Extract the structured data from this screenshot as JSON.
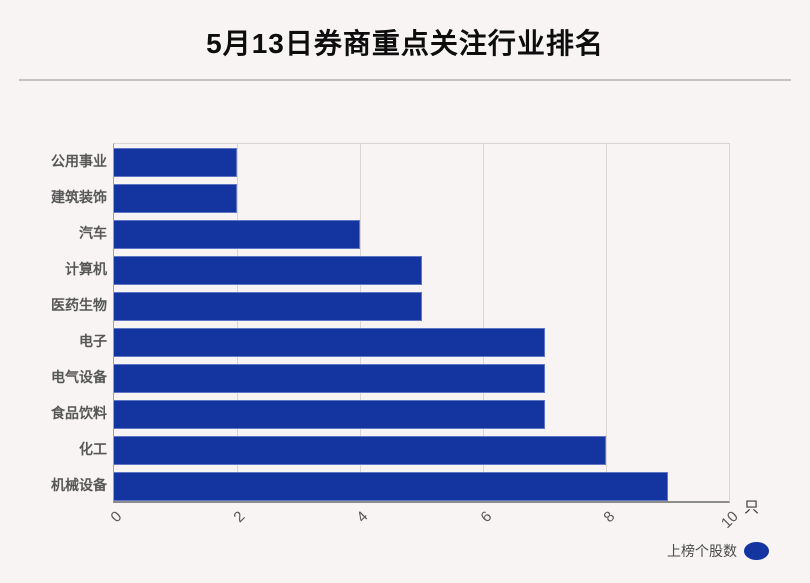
{
  "title": "5月13日券商重点关注行业排名",
  "axis": {
    "unit_label": "只",
    "tick_labels": [
      "0",
      "2",
      "4",
      "6",
      "8",
      "10"
    ]
  },
  "legend": {
    "label": "上榜个股数"
  },
  "colors": {
    "bar": "#1434a0",
    "bar_border": "#5e76c4",
    "background": "#f7f4f3",
    "grid": "#d9d5d5",
    "axis_line": "#8c8c8c",
    "label_text": "#575757",
    "title_text": "#0d0d0d"
  },
  "chart_data": {
    "type": "bar",
    "orientation": "horizontal",
    "title": "5月13日券商重点关注行业排名",
    "categories": [
      "公用事业",
      "建筑装饰",
      "汽车",
      "计算机",
      "医药生物",
      "电子",
      "电气设备",
      "食品饮料",
      "化工",
      "机械设备"
    ],
    "series": [
      {
        "name": "上榜个股数",
        "values": [
          2,
          2,
          4,
          5,
          5,
          7,
          7,
          7,
          8,
          9
        ]
      }
    ],
    "xlabel": "只",
    "ylabel": "",
    "xlim": [
      0,
      10
    ],
    "xticks": [
      0,
      2,
      4,
      6,
      8,
      10
    ],
    "grid": true,
    "tick_label_rotation": 45,
    "legend_position": "bottom-right"
  }
}
